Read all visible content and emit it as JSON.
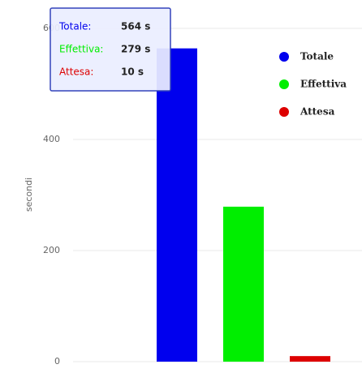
{
  "chart_data": {
    "type": "bar",
    "ylabel": "secondi",
    "ylim": [
      0,
      600
    ],
    "yticks": [
      0,
      200,
      400,
      600
    ],
    "grid": true,
    "legend": "upper right",
    "series": [
      {
        "name": "Totale",
        "color": "#0000ee",
        "values": [
          564
        ],
        "value_labels": [
          "564 s"
        ]
      },
      {
        "name": "Effettiva",
        "color": "#00ee00",
        "values": [
          279
        ],
        "value_labels": [
          "279 s"
        ]
      },
      {
        "name": "Attesa",
        "color": "#dd0000",
        "values": [
          10
        ],
        "value_labels": [
          "10 s"
        ]
      }
    ],
    "tooltip_labels": [
      "Totale:",
      "Effettiva:",
      "Attesa:"
    ]
  }
}
